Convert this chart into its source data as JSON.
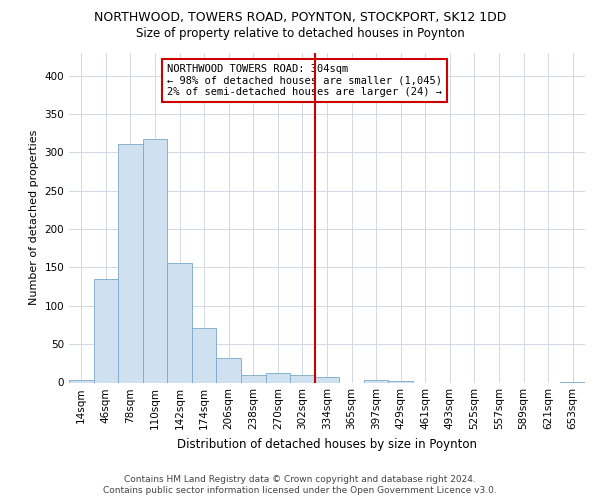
{
  "title": "NORTHWOOD, TOWERS ROAD, POYNTON, STOCKPORT, SK12 1DD",
  "subtitle": "Size of property relative to detached houses in Poynton",
  "xlabel": "Distribution of detached houses by size in Poynton",
  "ylabel": "Number of detached properties",
  "footnote1": "Contains HM Land Registry data © Crown copyright and database right 2024.",
  "footnote2": "Contains public sector information licensed under the Open Government Licence v3.0.",
  "bar_labels": [
    "14sqm",
    "46sqm",
    "78sqm",
    "110sqm",
    "142sqm",
    "174sqm",
    "206sqm",
    "238sqm",
    "270sqm",
    "302sqm",
    "334sqm",
    "365sqm",
    "397sqm",
    "429sqm",
    "461sqm",
    "493sqm",
    "525sqm",
    "557sqm",
    "589sqm",
    "621sqm",
    "653sqm"
  ],
  "bar_heights": [
    3,
    135,
    311,
    317,
    156,
    71,
    32,
    10,
    13,
    10,
    7,
    0,
    3,
    2,
    0,
    0,
    0,
    0,
    0,
    0,
    1
  ],
  "bar_color": "#cfe0f0",
  "bar_edge_color": "#7aaac8",
  "grid_color": "#d0d8e4",
  "bg_color": "#ffffff",
  "vline_color": "#cc0000",
  "annotation_text": "NORTHWOOD TOWERS ROAD: 304sqm\n← 98% of detached houses are smaller (1,045)\n2% of semi-detached houses are larger (24) →",
  "annotation_box_color": "#cc0000",
  "ylim": [
    0,
    430
  ],
  "yticks": [
    0,
    50,
    100,
    150,
    200,
    250,
    300,
    350,
    400
  ],
  "title_fontsize": 9,
  "subtitle_fontsize": 8.5,
  "xlabel_fontsize": 8.5,
  "ylabel_fontsize": 8,
  "tick_fontsize": 7.5,
  "annot_fontsize": 7.5,
  "footnote_fontsize": 6.5
}
